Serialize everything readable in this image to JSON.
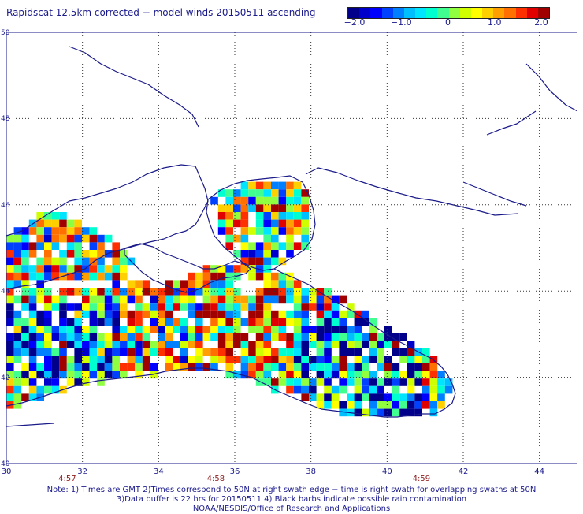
{
  "title": "Rapidscat 12.5km corrected − model winds 20150511 ascending",
  "colorbar": {
    "ticks": [
      "−2.0",
      "−1.0",
      "0",
      "1.0",
      "2.0"
    ],
    "colors": [
      "#00008b",
      "#0000cd",
      "#0000ff",
      "#0040ff",
      "#0080ff",
      "#00bfff",
      "#00e5ff",
      "#00ffd0",
      "#40ff90",
      "#90ff40",
      "#d0ff00",
      "#ffff00",
      "#ffd000",
      "#ffa000",
      "#ff7000",
      "#ff3000",
      "#e00000",
      "#a00000"
    ]
  },
  "axes": {
    "lat_labels": [
      "50",
      "48",
      "46",
      "44",
      "42",
      "40"
    ],
    "lon_labels": [
      "30",
      "32",
      "34",
      "36",
      "38",
      "40",
      "42",
      "44"
    ],
    "lon_range": [
      30,
      45
    ],
    "lat_range": [
      40,
      50
    ]
  },
  "times": [
    {
      "label": "4:57",
      "lon": 31.6
    },
    {
      "label": "4:58",
      "lon": 35.5
    },
    {
      "label": "4:59",
      "lon": 40.9
    }
  ],
  "notes": [
    "Note: 1) Times are GMT 2)Times correspond to 50N at right swath edge − time is right swath for overlapping swaths at 50N",
    "3)Data buffer is 22 hrs for 20150511 4) Black barbs indicate possible rain contamination",
    "NOAA/NESDIS/Office of Research and Applications"
  ]
}
